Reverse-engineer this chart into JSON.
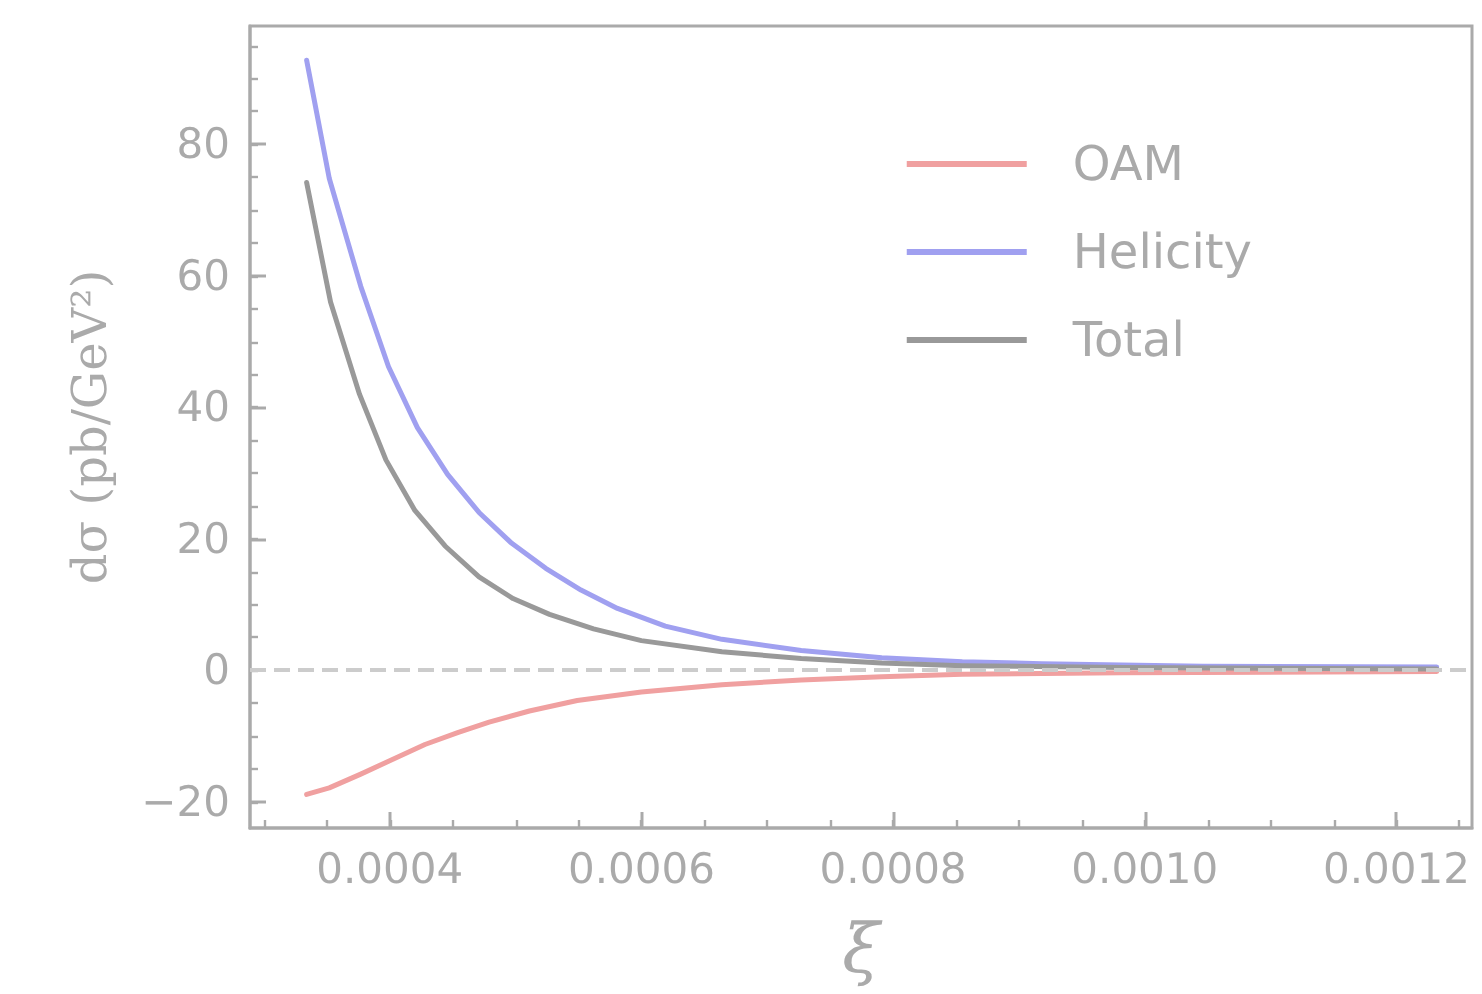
{
  "chart_data": {
    "type": "line",
    "xlabel": "ξ",
    "ylabel": "dσ (pb/GeV²)",
    "xlim": [
      0.000289,
      0.00126
    ],
    "xticks": [
      {
        "value": 0.0004,
        "label": "0.0004"
      },
      {
        "value": 0.0006,
        "label": "0.0006"
      },
      {
        "value": 0.0008,
        "label": "0.0008"
      },
      {
        "value": 0.001,
        "label": "0.0010"
      },
      {
        "value": 0.0012,
        "label": "0.0012"
      }
    ],
    "ylim": [
      -24,
      98
    ],
    "yticks": [
      -20,
      0,
      20,
      40,
      60,
      80
    ],
    "grid": false,
    "legend": "top right",
    "marker": "none",
    "line_style": "solid",
    "ref_lines": [
      {
        "axis": "y",
        "value": 0,
        "color": "#cccccc",
        "line_style": "dashed"
      }
    ],
    "series": [
      {
        "name": "OAM",
        "color": "#f0a0a0",
        "x": [
          0.000334,
          0.000352,
          0.000377,
          0.000403,
          0.000428,
          0.000454,
          0.000479,
          0.000511,
          0.000549,
          0.0006,
          0.000664,
          0.000727,
          0.000791,
          0.000855,
          0.000982,
          0.001232
        ],
        "values": [
          -18.9,
          -17.9,
          -15.8,
          -13.5,
          -11.3,
          -9.5,
          -7.9,
          -6.2,
          -4.6,
          -3.3,
          -2.2,
          -1.5,
          -1.0,
          -0.6,
          -0.4,
          -0.2
        ]
      },
      {
        "name": "Helicity",
        "color": "#a0a0f0",
        "x": [
          0.000334,
          0.000352,
          0.000377,
          0.000399,
          0.000422,
          0.000446,
          0.000471,
          0.000497,
          0.000524,
          0.000552,
          0.000581,
          0.000619,
          0.000664,
          0.000727,
          0.000791,
          0.000855,
          0.000918,
          0.001046,
          0.001232
        ],
        "values": [
          92.8,
          74.8,
          58.4,
          46.2,
          36.9,
          29.8,
          24.0,
          19.3,
          15.5,
          12.2,
          9.4,
          6.7,
          4.7,
          3.0,
          1.9,
          1.3,
          1.0,
          0.6,
          0.5
        ]
      },
      {
        "name": "Total",
        "color": "#999999",
        "x": [
          0.000334,
          0.000353,
          0.000376,
          0.000397,
          0.00042,
          0.000444,
          0.000471,
          0.000498,
          0.000527,
          0.000562,
          0.0006,
          0.000664,
          0.000727,
          0.000791,
          0.000855,
          0.000982,
          0.001232
        ],
        "values": [
          74.2,
          56.0,
          42.0,
          32.0,
          24.3,
          18.9,
          14.2,
          10.9,
          8.5,
          6.3,
          4.5,
          2.8,
          1.8,
          1.1,
          0.7,
          0.4,
          0.2
        ]
      }
    ]
  }
}
